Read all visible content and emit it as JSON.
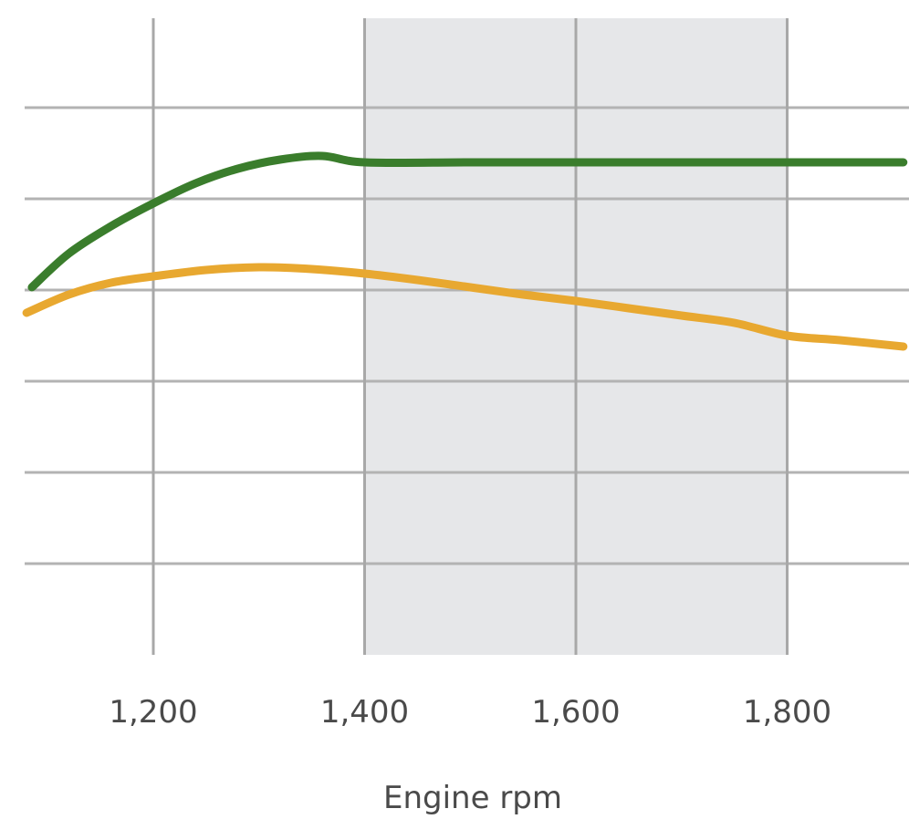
{
  "chart_data": {
    "type": "line",
    "title": "",
    "xlabel": "Engine rpm",
    "ylabel": "",
    "xlim": [
      1080,
      1910
    ],
    "ylim": [
      0,
      7
    ],
    "x_ticks": [
      1200,
      1400,
      1600,
      1800
    ],
    "x_tick_labels": [
      "1,200",
      "1,400",
      "1,600",
      "1,800"
    ],
    "y_gridlines": [
      1,
      2,
      3,
      4,
      5,
      6
    ],
    "grid": true,
    "highlight_band": {
      "x_range": [
        1400,
        1800
      ],
      "color": "#e6e7e9"
    },
    "series": [
      {
        "color": "#3a7d2c",
        "x": [
          1085,
          1120,
          1160,
          1200,
          1240,
          1280,
          1320,
          1360,
          1400,
          1500,
          1600,
          1700,
          1800,
          1910
        ],
        "y": [
          4.03,
          4.4,
          4.7,
          4.95,
          5.17,
          5.33,
          5.43,
          5.47,
          5.4,
          5.4,
          5.4,
          5.4,
          5.4,
          5.4
        ]
      },
      {
        "color": "#e8a830",
        "x": [
          1080,
          1120,
          1160,
          1200,
          1250,
          1300,
          1350,
          1400,
          1450,
          1500,
          1550,
          1600,
          1650,
          1700,
          1750,
          1800,
          1850,
          1910
        ],
        "y": [
          3.75,
          3.95,
          4.08,
          4.15,
          4.22,
          4.25,
          4.23,
          4.18,
          4.11,
          4.03,
          3.95,
          3.88,
          3.8,
          3.72,
          3.64,
          3.5,
          3.45,
          3.38
        ]
      }
    ]
  }
}
